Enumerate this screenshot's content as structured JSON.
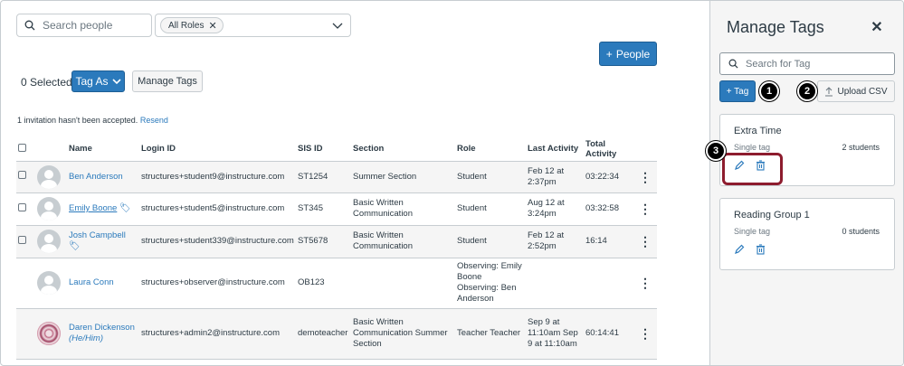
{
  "search": {
    "placeholder": "Search people"
  },
  "roles": {
    "chip": "All Roles"
  },
  "toolbar": {
    "people_button": "People",
    "selected": "0 Selected",
    "tag_as": "Tag As",
    "manage_tags": "Manage Tags"
  },
  "invitation": {
    "text": "1 invitation hasn't been accepted.",
    "link": "Resend"
  },
  "table": {
    "headers": {
      "name": "Name",
      "login": "Login ID",
      "sis": "SIS ID",
      "section": "Section",
      "role": "Role",
      "last": "Last Activity",
      "total": "Total Activity"
    },
    "rows": [
      {
        "name": "Ben Anderson",
        "login": "structures+student9@instructure.com",
        "sis": "ST1254",
        "section": "Summer Section",
        "role": "Student",
        "last": "Feb 12 at 2:37pm",
        "total": "03:22:34"
      },
      {
        "name": "Emily Boone",
        "login": "structures+student5@instructure.com",
        "sis": "ST345",
        "section": "Basic Written Communication",
        "role": "Student",
        "last": "Aug 12 at 3:24pm",
        "total": "03:32:58"
      },
      {
        "name": "Josh Campbell",
        "login": "structures+student339@instructure.com",
        "sis": "ST5678",
        "section": "Basic Written Communication",
        "role": "Student",
        "last": "Feb 12 at 2:52pm",
        "total": "16:14"
      },
      {
        "name": "Laura Conn",
        "login": "structures+observer@instructure.com",
        "sis": "OB123",
        "section": "",
        "role": "Observing: Emily Boone Observing: Ben Anderson",
        "last": "",
        "total": ""
      },
      {
        "name": "Daren Dickenson",
        "pronouns": "(He/Him)",
        "login": "structures+admin2@instructure.com",
        "sis": "demoteacher",
        "section": "Basic Written Communication Summer Section",
        "role": "Teacher Teacher",
        "last": "Sep 9 at 11:10am Sep 9 at 11:10am",
        "total": "60:14:41"
      }
    ]
  },
  "panel": {
    "title": "Manage Tags",
    "search_placeholder": "Search for Tag",
    "add_tag": "+ Tag",
    "upload": "Upload CSV",
    "badges": [
      "1",
      "2",
      "3"
    ],
    "cards": [
      {
        "name": "Extra Time",
        "type": "Single tag",
        "count": "2 students"
      },
      {
        "name": "Reading Group 1",
        "type": "Single tag",
        "count": "0 students"
      }
    ]
  },
  "colors": {
    "primary": "#2b7abc",
    "highlight": "#8d1c2e"
  }
}
